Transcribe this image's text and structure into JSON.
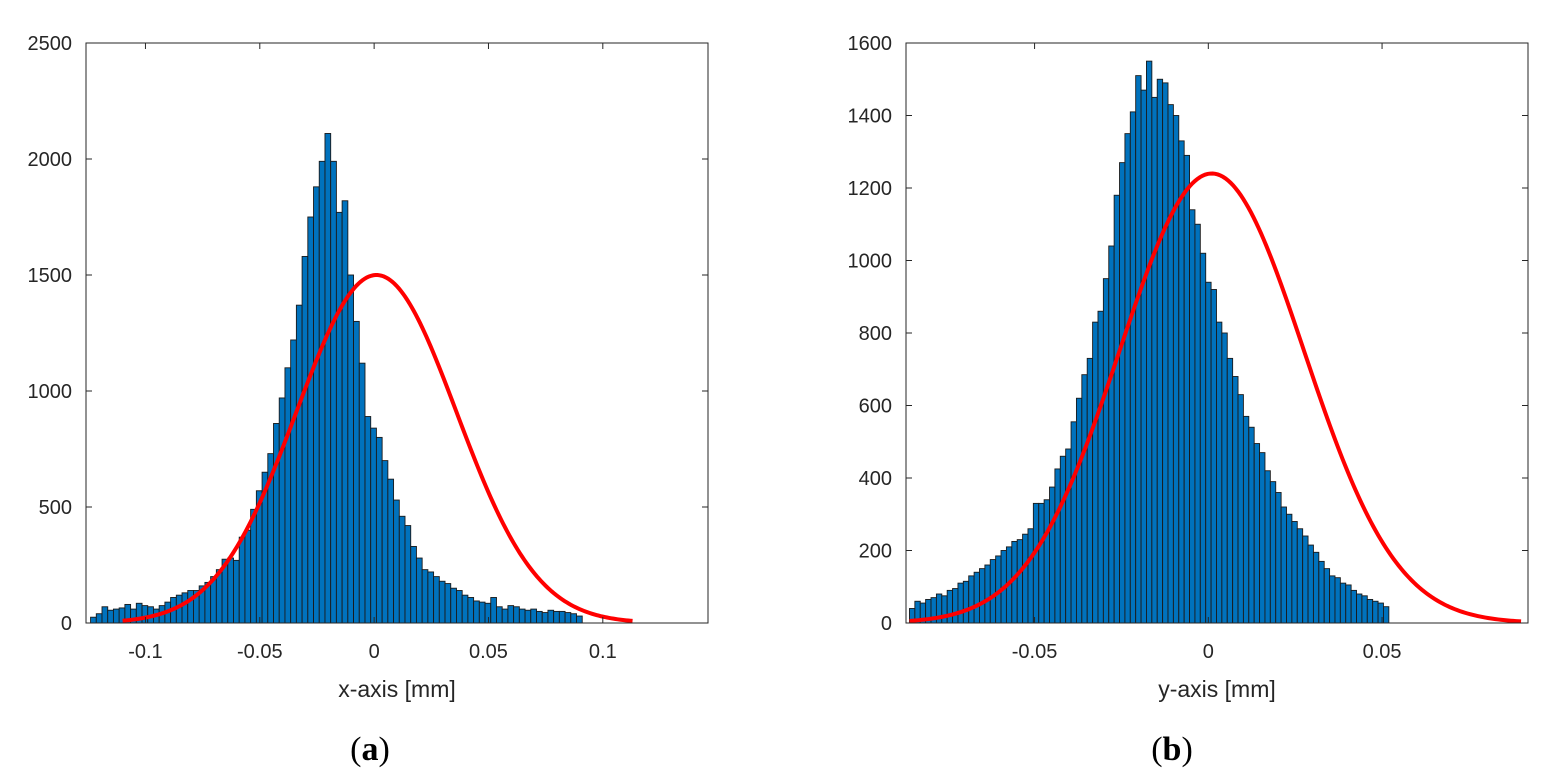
{
  "colors": {
    "bar_fill": "#0072BD",
    "bar_edge": "#1a1a1a",
    "fit_line": "#FF0000",
    "axis": "#262626"
  },
  "chart_data": [
    {
      "id": "a",
      "type": "bar",
      "panel_label": "a",
      "xlabel": "x-axis [mm]",
      "ylabel": "",
      "xlim": [
        -0.126,
        0.146
      ],
      "ylim": [
        0,
        2500
      ],
      "xticks": [
        -0.1,
        -0.05,
        0,
        0.05,
        0.1
      ],
      "xtick_labels": [
        "-0.1",
        "-0.05",
        "0",
        "0.05",
        "0.1"
      ],
      "yticks": [
        0,
        500,
        1000,
        1500,
        2000,
        2500
      ],
      "ytick_labels": [
        "0",
        "500",
        "1000",
        "1500",
        "2000",
        "2500"
      ],
      "bin_start": -0.124,
      "bin_width": 0.0025,
      "series": [
        {
          "name": "histogram",
          "values": [
            25,
            40,
            70,
            55,
            60,
            65,
            80,
            60,
            85,
            75,
            70,
            60,
            75,
            90,
            110,
            120,
            130,
            140,
            140,
            160,
            175,
            200,
            230,
            275,
            280,
            270,
            370,
            400,
            490,
            570,
            650,
            730,
            860,
            970,
            1100,
            1220,
            1370,
            1580,
            1750,
            1880,
            1990,
            2110,
            1990,
            1770,
            1820,
            1500,
            1300,
            1120,
            890,
            840,
            800,
            700,
            620,
            530,
            460,
            420,
            330,
            280,
            230,
            220,
            200,
            180,
            170,
            150,
            140,
            120,
            110,
            95,
            90,
            85,
            110,
            70,
            60,
            75,
            70,
            60,
            55,
            60,
            50,
            45,
            55,
            50,
            50,
            45,
            40,
            30
          ]
        },
        {
          "name": "gaussian_fit",
          "type": "line",
          "peak": 1500,
          "mean": 0.001,
          "sigma": 0.035,
          "x_range": [
            -0.11,
            0.113
          ]
        }
      ]
    },
    {
      "id": "b",
      "type": "bar",
      "panel_label": "b",
      "xlabel": "y-axis [mm]",
      "ylabel": "",
      "xlim": [
        -0.087,
        0.092
      ],
      "ylim": [
        0,
        1600
      ],
      "xticks": [
        -0.05,
        0,
        0.05
      ],
      "xtick_labels": [
        "-0.05",
        "0",
        "0.05"
      ],
      "yticks": [
        0,
        200,
        400,
        600,
        800,
        1000,
        1200,
        1400,
        1600
      ],
      "ytick_labels": [
        "0",
        "200",
        "400",
        "600",
        "800",
        "1000",
        "1200",
        "1400",
        "1600"
      ],
      "bin_start": -0.086,
      "bin_width": 0.00155,
      "series": [
        {
          "name": "histogram",
          "values": [
            40,
            60,
            55,
            65,
            70,
            80,
            75,
            90,
            95,
            110,
            115,
            130,
            140,
            150,
            160,
            175,
            185,
            200,
            210,
            225,
            230,
            245,
            260,
            330,
            330,
            340,
            375,
            425,
            460,
            480,
            555,
            620,
            685,
            730,
            830,
            860,
            950,
            1040,
            1180,
            1270,
            1350,
            1410,
            1510,
            1470,
            1550,
            1450,
            1500,
            1490,
            1430,
            1400,
            1330,
            1290,
            1140,
            1100,
            1020,
            940,
            920,
            830,
            800,
            730,
            680,
            630,
            570,
            540,
            495,
            470,
            420,
            390,
            360,
            320,
            300,
            280,
            260,
            240,
            215,
            195,
            170,
            150,
            130,
            125,
            110,
            105,
            90,
            80,
            75,
            65,
            60,
            55,
            45
          ]
        },
        {
          "name": "gaussian_fit",
          "type": "line",
          "peak": 1240,
          "mean": 0.001,
          "sigma": 0.0265,
          "x_range": [
            -0.086,
            0.09
          ]
        }
      ]
    }
  ]
}
